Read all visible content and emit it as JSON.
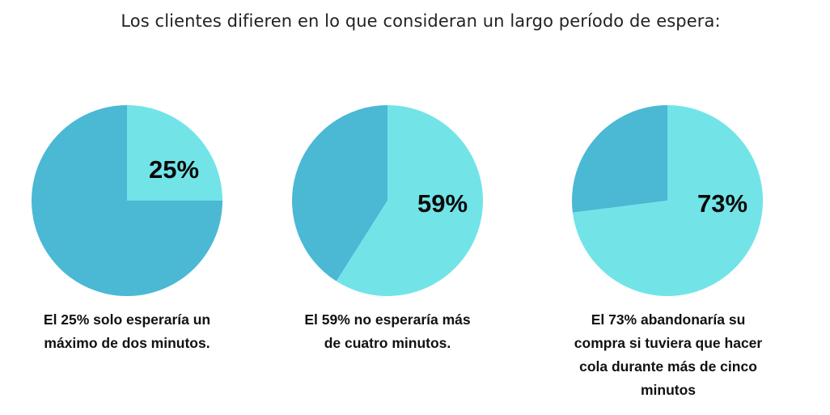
{
  "title": "Los clientes difieren en lo que consideran un largo período de espera:",
  "colors": {
    "highlight": "#72E4E8",
    "rest": "#4BB8D4"
  },
  "chart_data": [
    {
      "type": "pie",
      "slices": [
        {
          "label": "25%",
          "value": 25,
          "highlight": true
        },
        {
          "label": "",
          "value": 75,
          "highlight": false
        }
      ],
      "caption": "El 25% solo esperaría un máximo de dos minutos.",
      "caption_lines": [
        "El 25% solo esperaría un",
        "máximo de dos minutos."
      ]
    },
    {
      "type": "pie",
      "slices": [
        {
          "label": "59%",
          "value": 59,
          "highlight": true
        },
        {
          "label": "",
          "value": 41,
          "highlight": false
        }
      ],
      "caption": "El 59% no esperaría más de cuatro minutos.",
      "caption_lines": [
        "El 59% no esperaría más",
        "de cuatro minutos."
      ]
    },
    {
      "type": "pie",
      "slices": [
        {
          "label": "73%",
          "value": 73,
          "highlight": true
        },
        {
          "label": "",
          "value": 27,
          "highlight": false
        }
      ],
      "caption": "El 73% abandonaría su compra si tuviera que hacer cola durante más de cinco minutos",
      "caption_lines": [
        "El 73% abandonaría su",
        "compra si tuviera que hacer",
        "cola durante más de cinco",
        "minutos"
      ]
    }
  ]
}
